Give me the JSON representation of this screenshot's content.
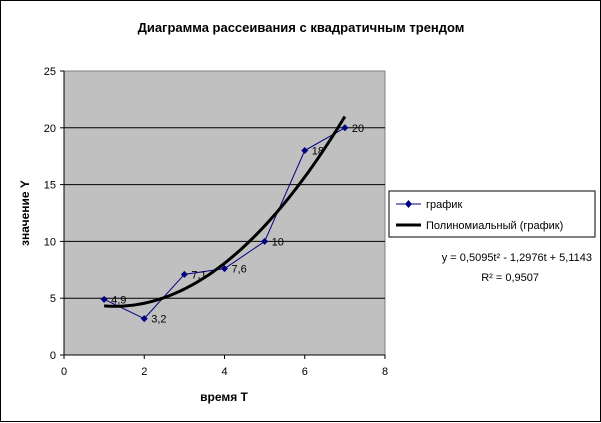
{
  "chart_data": {
    "type": "scatter",
    "title": "Диаграмма рассеивания с квадратичным трендом",
    "xlabel": "время T",
    "ylabel": "значение Y",
    "xlim": [
      0,
      8
    ],
    "ylim": [
      0,
      25
    ],
    "x_ticks": [
      0,
      2,
      4,
      6,
      8
    ],
    "y_ticks": [
      0,
      5,
      10,
      15,
      20,
      25
    ],
    "grid": "horizontal",
    "plot_background": "#c0c0c0",
    "series": [
      {
        "name": "график",
        "color": "#000080",
        "marker": "diamond",
        "x": [
          1,
          2,
          3,
          4,
          5,
          6,
          7
        ],
        "y": [
          4.9,
          3.2,
          7.1,
          7.6,
          10,
          18,
          20
        ],
        "labels": [
          "4,9",
          "3,2",
          "7,1",
          "7,6",
          "10",
          "18",
          "20"
        ]
      }
    ],
    "trendline": {
      "name": "Полиномиальный (график)",
      "type": "polynomial",
      "order": 2,
      "coefficients": [
        0.5095,
        -1.2976,
        5.1143
      ],
      "x_range": [
        1,
        7
      ],
      "color": "#000000",
      "equation": "y = 0,5095t² - 1,2976t + 5,1143",
      "r_squared": "R² = 0,9507"
    },
    "legend": {
      "placement": "right",
      "items": [
        "график",
        "Полиномиальный (график)"
      ]
    }
  }
}
